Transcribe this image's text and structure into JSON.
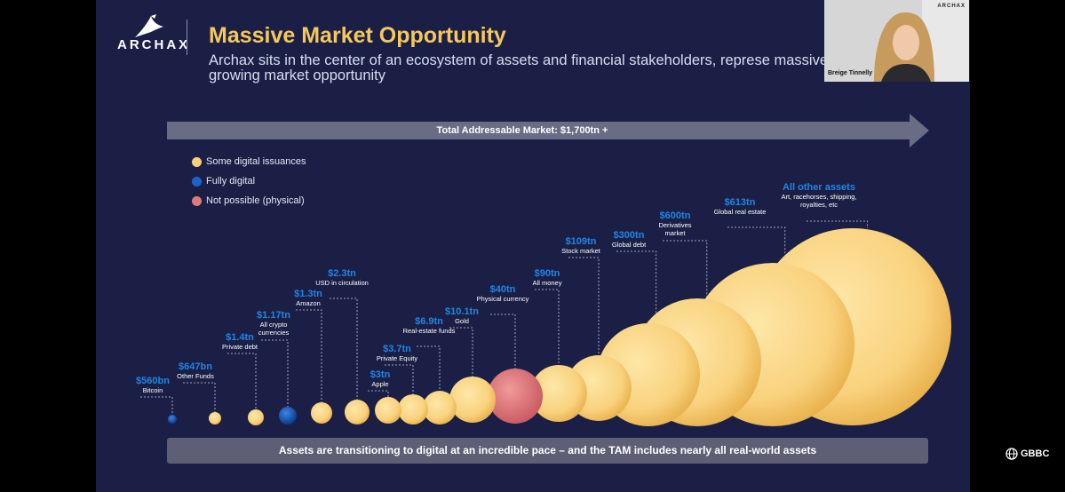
{
  "logo": {
    "text": "ARCHAX"
  },
  "slide": {
    "title": "Massive Market Opportunity",
    "subtitle": "Archax sits in the center of an ecosystem of assets and financial stakeholders, represe massive and growing market opportunity",
    "tam_label": "Total Addressable Market: $1,700tn +",
    "bottom_caption": "Assets are transitioning to digital at an incredible pace – and the TAM includes nearly all real-world assets"
  },
  "legend": [
    {
      "label": "Some digital issuances",
      "color": "#f8d07a"
    },
    {
      "label": "Fully digital",
      "color": "#1e64c8"
    },
    {
      "label": "Not possible (physical)",
      "color": "#e07b7b"
    }
  ],
  "colors": {
    "gold": "#fbd98b",
    "gold_edge": "#e9b24e",
    "blue": "#1a5cc4",
    "red": "#e07b7b",
    "accent": "#f6c85c",
    "value_blue": "#1f86e6"
  },
  "assets": [
    {
      "value": "$560bn",
      "label": "Bitcoin",
      "type": "blue"
    },
    {
      "value": "$647bn",
      "label": "Other Funds",
      "type": "gold"
    },
    {
      "value": "$1.4tn",
      "label": "Private debt",
      "type": "gold"
    },
    {
      "value": "$1.17tn",
      "label": "All crypto currencies",
      "type": "blue"
    },
    {
      "value": "$1.3tn",
      "label": "Amazon",
      "type": "gold"
    },
    {
      "value": "$2.3tn",
      "label": "USD in circulation",
      "type": "gold"
    },
    {
      "value": "$3tn",
      "label": "Apple",
      "type": "gold"
    },
    {
      "value": "$3.7tn",
      "label": "Private Equity",
      "type": "gold"
    },
    {
      "value": "$6.9tn",
      "label": "Real-estate funds",
      "type": "gold"
    },
    {
      "value": "$10.1tn",
      "label": "Gold",
      "type": "gold"
    },
    {
      "value": "$40tn",
      "label": "Physical currency",
      "type": "red"
    },
    {
      "value": "$90tn",
      "label": "All money",
      "type": "gold"
    },
    {
      "value": "$109tn",
      "label": "Stock market",
      "type": "gold"
    },
    {
      "value": "$300tn",
      "label": "Global debt",
      "type": "gold"
    },
    {
      "value": "$600tn",
      "label": "Derivatives market",
      "type": "gold"
    },
    {
      "value": "$613tn",
      "label": "Global real estate",
      "type": "gold"
    },
    {
      "value": "All other assets",
      "label": "Art, racehorses, shipping, royalties, etc",
      "type": "gold"
    }
  ],
  "webcam": {
    "name": "Breige Tinnelly",
    "logo": "ARCHAX"
  },
  "footer": {
    "brand": "GBBC"
  }
}
